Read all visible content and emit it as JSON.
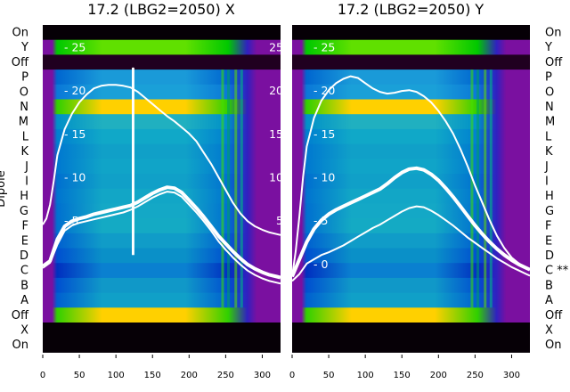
{
  "chart_data": [
    {
      "type": "heatmap",
      "title": "17.2 (LBG2=2050) X",
      "ylabel": "Dipole",
      "row_labels": [
        "On",
        "Y",
        "Off",
        "P",
        "O",
        "N",
        "M",
        "L",
        "K",
        "J",
        "I",
        "H",
        "G",
        "F",
        "E",
        "D",
        "C",
        "B",
        "A",
        "Off",
        "X",
        "On"
      ],
      "x_ticks": [
        0,
        50,
        100,
        150,
        200,
        250,
        300
      ],
      "x_range": [
        0,
        325
      ],
      "overlay_ticks": [
        5,
        10,
        15,
        20,
        25
      ],
      "overlay_range": [
        -2.5,
        27
      ],
      "series": [
        {
          "name": "envelope",
          "x": [
            0,
            5,
            10,
            15,
            20,
            30,
            40,
            50,
            60,
            70,
            80,
            90,
            100,
            110,
            120,
            130,
            140,
            150,
            160,
            170,
            180,
            190,
            200,
            210,
            220,
            230,
            240,
            250,
            260,
            270,
            280,
            290,
            300,
            310,
            320,
            325
          ],
          "y": [
            4.5,
            5.2,
            6.8,
            9.5,
            12.5,
            15.5,
            17.3,
            18.6,
            19.5,
            20.2,
            20.5,
            20.6,
            20.6,
            20.5,
            20.3,
            19.8,
            19.1,
            18.4,
            17.7,
            17.0,
            16.4,
            15.7,
            15.0,
            14.1,
            12.8,
            11.5,
            10.0,
            8.5,
            7.0,
            5.8,
            4.9,
            4.3,
            3.9,
            3.6,
            3.4,
            3.3
          ]
        },
        {
          "name": "mean",
          "x": [
            0,
            10,
            20,
            30,
            40,
            50,
            60,
            70,
            80,
            90,
            100,
            110,
            120,
            130,
            140,
            150,
            160,
            170,
            180,
            190,
            200,
            210,
            220,
            230,
            240,
            250,
            260,
            270,
            280,
            290,
            300,
            310,
            320,
            325
          ],
          "y": [
            -0.3,
            0.3,
            2.8,
            4.3,
            4.9,
            5.2,
            5.4,
            5.7,
            5.9,
            6.1,
            6.3,
            6.5,
            6.7,
            7.1,
            7.6,
            8.1,
            8.5,
            8.8,
            8.7,
            8.2,
            7.3,
            6.4,
            5.4,
            4.3,
            3.2,
            2.3,
            1.4,
            0.6,
            -0.1,
            -0.6,
            -1.0,
            -1.3,
            -1.5,
            -1.6
          ]
        },
        {
          "name": "lower",
          "x": [
            0,
            10,
            20,
            30,
            40,
            50,
            60,
            70,
            80,
            90,
            100,
            110,
            120,
            130,
            140,
            150,
            160,
            170,
            180,
            190,
            200,
            210,
            220,
            230,
            240,
            250,
            260,
            270,
            280,
            290,
            300,
            310,
            320,
            325
          ],
          "y": [
            -0.5,
            0.1,
            2.2,
            3.8,
            4.4,
            4.7,
            4.9,
            5.1,
            5.3,
            5.5,
            5.7,
            5.9,
            6.2,
            6.6,
            7.1,
            7.6,
            8.0,
            8.3,
            8.2,
            7.7,
            6.8,
            5.9,
            4.9,
            3.8,
            2.6,
            1.6,
            0.7,
            -0.1,
            -0.8,
            -1.3,
            -1.7,
            -2.0,
            -2.2,
            -2.3
          ]
        },
        {
          "name": "spike",
          "x": [
            123,
            123,
            124,
            124
          ],
          "y": [
            1.0,
            22.5,
            22.5,
            1.0
          ]
        }
      ]
    },
    {
      "type": "heatmap",
      "title": "17.2 (LBG2=2050) Y",
      "row_labels": [
        "On",
        "Y",
        "Off",
        "P",
        "O",
        "N",
        "M",
        "L",
        "K",
        "J",
        "I",
        "H",
        "G",
        "F",
        "E",
        "D",
        "C **",
        "B",
        "A",
        "Off",
        "X",
        "On"
      ],
      "x_ticks": [
        0,
        50,
        100,
        150,
        200,
        250,
        300
      ],
      "x_range": [
        0,
        325
      ],
      "overlay_ticks": [
        0,
        5,
        10,
        15,
        20,
        25
      ],
      "overlay_range": [
        -2.5,
        27
      ],
      "series": [
        {
          "name": "envelope",
          "x": [
            0,
            5,
            10,
            15,
            20,
            30,
            40,
            50,
            60,
            70,
            80,
            90,
            100,
            110,
            120,
            130,
            140,
            150,
            160,
            170,
            180,
            190,
            200,
            210,
            220,
            230,
            240,
            250,
            260,
            270,
            280,
            290,
            300,
            310,
            320,
            325
          ],
          "y": [
            -1.5,
            1.5,
            5.5,
            10.0,
            13.5,
            16.8,
            18.8,
            20.0,
            20.8,
            21.3,
            21.6,
            21.4,
            20.8,
            20.2,
            19.8,
            19.6,
            19.7,
            19.9,
            20.0,
            19.8,
            19.3,
            18.6,
            17.6,
            16.4,
            15.0,
            13.2,
            11.2,
            9.0,
            7.0,
            5.0,
            3.2,
            1.8,
            0.7,
            0.0,
            -0.5,
            -0.7
          ]
        },
        {
          "name": "mean",
          "x": [
            0,
            10,
            20,
            30,
            40,
            50,
            60,
            70,
            80,
            90,
            100,
            110,
            120,
            130,
            140,
            150,
            160,
            170,
            180,
            190,
            200,
            210,
            220,
            230,
            240,
            250,
            260,
            270,
            280,
            290,
            300,
            310,
            320,
            325
          ],
          "y": [
            -1.5,
            0.5,
            2.5,
            4.0,
            5.0,
            5.7,
            6.2,
            6.6,
            7.0,
            7.4,
            7.8,
            8.2,
            8.6,
            9.2,
            9.9,
            10.5,
            10.9,
            11.0,
            10.8,
            10.3,
            9.6,
            8.7,
            7.7,
            6.6,
            5.5,
            4.4,
            3.4,
            2.5,
            1.7,
            1.0,
            0.4,
            -0.1,
            -0.5,
            -0.7
          ]
        },
        {
          "name": "lower",
          "x": [
            0,
            10,
            20,
            30,
            40,
            50,
            60,
            70,
            80,
            90,
            100,
            110,
            120,
            130,
            140,
            150,
            160,
            170,
            180,
            190,
            200,
            210,
            220,
            230,
            240,
            250,
            260,
            270,
            280,
            290,
            300,
            310,
            320,
            325
          ],
          "y": [
            -2.0,
            -1.2,
            0.0,
            0.5,
            1.0,
            1.3,
            1.7,
            2.1,
            2.6,
            3.1,
            3.6,
            4.1,
            4.5,
            5.0,
            5.5,
            6.0,
            6.4,
            6.6,
            6.5,
            6.1,
            5.6,
            5.0,
            4.4,
            3.7,
            3.0,
            2.4,
            1.8,
            1.2,
            0.6,
            0.1,
            -0.4,
            -0.8,
            -1.2,
            -1.4
          ]
        }
      ]
    }
  ]
}
